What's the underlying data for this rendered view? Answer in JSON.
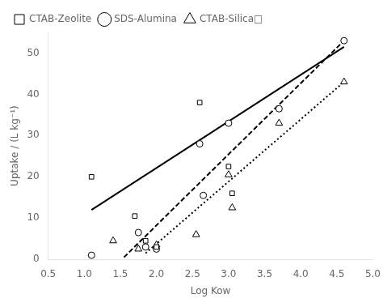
{
  "chart_data": {
    "type": "scatter",
    "xlabel": "Log Kow",
    "ylabel": "Uptake / (L kg⁻¹)",
    "xlim": [
      0.5,
      5.0
    ],
    "ylim": [
      0,
      55
    ],
    "xticks": [
      0.5,
      {
        "value": 1.0,
        "label": "1.0"
      },
      1.5,
      {
        "value": 2.0,
        "label": "2.0"
      },
      2.5,
      {
        "value": 3.0,
        "label": "3.0"
      },
      3.5,
      {
        "value": 4.0,
        "label": "4.0"
      },
      4.5,
      {
        "value": 5.0,
        "label": "5.0"
      }
    ],
    "yticks": [
      0,
      10,
      20,
      30,
      40,
      50
    ],
    "grid": false,
    "legend": "upper left",
    "series": [
      {
        "type": "line",
        "line_style": "solid",
        "color": "black",
        "x": [
          1.1,
          4.6
        ],
        "values": [
          12.0,
          51.5
        ]
      },
      {
        "type": "line",
        "line_style": "dashed",
        "color": "black",
        "x": [
          1.55,
          4.6
        ],
        "values": [
          0.5,
          53.0
        ]
      },
      {
        "type": "line",
        "line_style": "dotted",
        "color": "black",
        "x": [
          1.85,
          4.6
        ],
        "values": [
          1.5,
          43.0
        ]
      },
      {
        "type": "scatter",
        "name": "CTAB-Zeolite",
        "marker": "square",
        "color": "black",
        "x": [
          1.1,
          1.7,
          1.85,
          2.0,
          2.6,
          3.0,
          3.05
        ],
        "values": [
          20.0,
          10.5,
          4.5,
          3.0,
          38.0,
          22.5,
          16.0
        ]
      },
      {
        "type": "scatter",
        "name": "SDS-Alumina",
        "marker": "circle",
        "color": "black",
        "x": [
          1.1,
          1.75,
          1.85,
          2.0,
          2.6,
          2.65,
          3.0,
          3.7,
          4.6
        ],
        "values": [
          1.0,
          6.5,
          3.0,
          2.5,
          28.0,
          15.5,
          33.0,
          36.5,
          53.0
        ]
      },
      {
        "type": "scatter",
        "name": "CTAB-Silica□",
        "marker": "triangle",
        "color": "black",
        "x": [
          1.4,
          1.75,
          2.0,
          2.55,
          3.0,
          3.05,
          3.7,
          4.6
        ],
        "values": [
          4.5,
          2.5,
          3.5,
          6.0,
          20.5,
          12.5,
          33.0,
          43.0
        ]
      }
    ]
  }
}
